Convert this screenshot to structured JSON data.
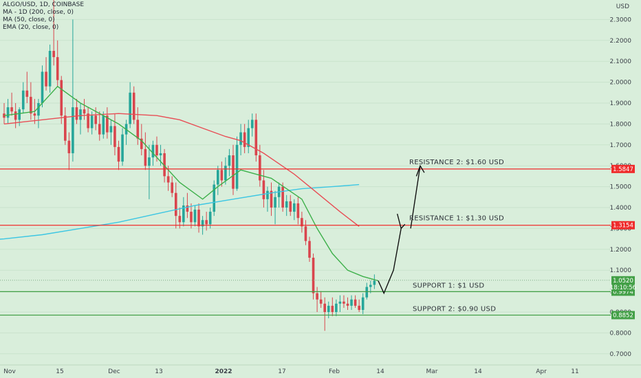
{
  "legend": {
    "title": "ALGO/USD, 1D, COINBASE",
    "lines": [
      "MA - 1D (200, close, 0)",
      "MA (50, close, 0)",
      "EMA (20, close, 0)"
    ]
  },
  "chart_data": {
    "type": "candlestick",
    "currency_label": "USD",
    "y_ticks": [
      0.7,
      0.8,
      0.9,
      1.0,
      1.1,
      1.2,
      1.3,
      1.4,
      1.5,
      1.6,
      1.7,
      1.8,
      1.9,
      2.0,
      2.1,
      2.2,
      2.3
    ],
    "y_tick_labels": [
      "0.7000",
      "0.8000",
      "0.9000",
      "1.0000",
      "1.1000",
      "1.2000",
      "1.3000",
      "1.4000",
      "1.5000",
      "1.6000",
      "1.7000",
      "1.8000",
      "1.9000",
      "2.0000",
      "2.1000",
      "2.2000",
      "2.3000"
    ],
    "x_labels": [
      "Nov",
      "15",
      "Dec",
      "13",
      "2022",
      "17",
      "Feb",
      "14",
      "Mar",
      "14",
      "Apr",
      "11"
    ],
    "start_date": "2021-11-01",
    "candles": [
      [
        "2021-11-01",
        1.85,
        1.9,
        1.8,
        1.83
      ],
      [
        "2021-11-02",
        1.83,
        1.92,
        1.8,
        1.88
      ],
      [
        "2021-11-03",
        1.88,
        1.95,
        1.84,
        1.86
      ],
      [
        "2021-11-04",
        1.86,
        1.9,
        1.78,
        1.82
      ],
      [
        "2021-11-05",
        1.82,
        1.88,
        1.79,
        1.87
      ],
      [
        "2021-11-06",
        1.87,
        2.0,
        1.85,
        1.96
      ],
      [
        "2021-11-07",
        1.96,
        2.05,
        1.9,
        1.93
      ],
      [
        "2021-11-08",
        1.93,
        2.0,
        1.82,
        1.85
      ],
      [
        "2021-11-09",
        1.85,
        1.92,
        1.8,
        1.84
      ],
      [
        "2021-11-10",
        1.84,
        1.92,
        1.78,
        1.9
      ],
      [
        "2021-11-11",
        1.9,
        2.08,
        1.88,
        2.05
      ],
      [
        "2021-11-12",
        2.05,
        2.12,
        1.96,
        1.98
      ],
      [
        "2021-11-13",
        1.98,
        2.18,
        1.95,
        2.15
      ],
      [
        "2021-11-14",
        2.15,
        2.4,
        2.08,
        2.12
      ],
      [
        "2021-11-15",
        2.12,
        2.2,
        1.98,
        2.01
      ],
      [
        "2021-11-16",
        2.01,
        2.03,
        1.8,
        1.84
      ],
      [
        "2021-11-17",
        1.84,
        1.88,
        1.7,
        1.72
      ],
      [
        "2021-11-18",
        1.72,
        1.76,
        1.58,
        1.66
      ],
      [
        "2021-11-19",
        1.66,
        2.3,
        1.62,
        1.88
      ],
      [
        "2021-11-20",
        1.88,
        1.92,
        1.8,
        1.82
      ],
      [
        "2021-11-21",
        1.82,
        1.9,
        1.75,
        1.87
      ],
      [
        "2021-11-22",
        1.87,
        1.92,
        1.82,
        1.85
      ],
      [
        "2021-11-23",
        1.85,
        1.88,
        1.76,
        1.78
      ],
      [
        "2021-11-24",
        1.78,
        1.86,
        1.75,
        1.84
      ],
      [
        "2021-11-25",
        1.84,
        1.88,
        1.77,
        1.8
      ],
      [
        "2021-11-26",
        1.8,
        1.86,
        1.72,
        1.75
      ],
      [
        "2021-11-27",
        1.75,
        1.86,
        1.73,
        1.84
      ],
      [
        "2021-11-28",
        1.84,
        1.88,
        1.73,
        1.76
      ],
      [
        "2021-11-29",
        1.76,
        1.82,
        1.7,
        1.79
      ],
      [
        "2021-11-30",
        1.79,
        1.85,
        1.65,
        1.69
      ],
      [
        "2021-12-01",
        1.69,
        1.72,
        1.58,
        1.62
      ],
      [
        "2021-12-02",
        1.62,
        1.78,
        1.6,
        1.75
      ],
      [
        "2021-12-03",
        1.75,
        1.82,
        1.7,
        1.8
      ],
      [
        "2021-12-04",
        1.8,
        2.0,
        1.78,
        1.95
      ],
      [
        "2021-12-05",
        1.95,
        1.98,
        1.8,
        1.82
      ],
      [
        "2021-12-06",
        1.82,
        1.88,
        1.7,
        1.73
      ],
      [
        "2021-12-07",
        1.73,
        1.8,
        1.65,
        1.68
      ],
      [
        "2021-12-08",
        1.68,
        1.76,
        1.58,
        1.6
      ],
      [
        "2021-12-09",
        1.6,
        1.7,
        1.44,
        1.64
      ],
      [
        "2021-12-10",
        1.64,
        1.72,
        1.6,
        1.7
      ],
      [
        "2021-12-11",
        1.7,
        1.74,
        1.62,
        1.65
      ],
      [
        "2021-12-12",
        1.65,
        1.7,
        1.6,
        1.66
      ],
      [
        "2021-12-13",
        1.66,
        1.68,
        1.52,
        1.55
      ],
      [
        "2021-12-14",
        1.55,
        1.6,
        1.48,
        1.52
      ],
      [
        "2021-12-15",
        1.52,
        1.55,
        1.45,
        1.47
      ],
      [
        "2021-12-16",
        1.47,
        1.52,
        1.3,
        1.36
      ],
      [
        "2021-12-17",
        1.36,
        1.4,
        1.3,
        1.33
      ],
      [
        "2021-12-18",
        1.33,
        1.45,
        1.31,
        1.41
      ],
      [
        "2021-12-19",
        1.41,
        1.47,
        1.35,
        1.38
      ],
      [
        "2021-12-20",
        1.38,
        1.42,
        1.3,
        1.33
      ],
      [
        "2021-12-21",
        1.33,
        1.41,
        1.31,
        1.39
      ],
      [
        "2021-12-22",
        1.39,
        1.42,
        1.28,
        1.31
      ],
      [
        "2021-12-23",
        1.31,
        1.36,
        1.27,
        1.34
      ],
      [
        "2021-12-24",
        1.34,
        1.38,
        1.29,
        1.32
      ],
      [
        "2021-12-25",
        1.32,
        1.4,
        1.3,
        1.38
      ],
      [
        "2021-12-26",
        1.38,
        1.53,
        1.36,
        1.51
      ],
      [
        "2021-12-27",
        1.51,
        1.6,
        1.46,
        1.58
      ],
      [
        "2021-12-28",
        1.58,
        1.62,
        1.5,
        1.53
      ],
      [
        "2021-12-29",
        1.53,
        1.64,
        1.51,
        1.6
      ],
      [
        "2021-12-30",
        1.6,
        1.68,
        1.55,
        1.65
      ],
      [
        "2021-12-31",
        1.65,
        1.7,
        1.46,
        1.49
      ],
      [
        "2022-01-01",
        1.49,
        1.74,
        1.48,
        1.7
      ],
      [
        "2022-01-02",
        1.7,
        1.8,
        1.65,
        1.76
      ],
      [
        "2022-01-03",
        1.76,
        1.8,
        1.66,
        1.69
      ],
      [
        "2022-01-04",
        1.69,
        1.82,
        1.66,
        1.78
      ],
      [
        "2022-01-05",
        1.78,
        1.85,
        1.74,
        1.82
      ],
      [
        "2022-01-06",
        1.82,
        1.85,
        1.62,
        1.65
      ],
      [
        "2022-01-07",
        1.65,
        1.7,
        1.5,
        1.53
      ],
      [
        "2022-01-08",
        1.53,
        1.58,
        1.4,
        1.44
      ],
      [
        "2022-01-09",
        1.44,
        1.5,
        1.38,
        1.48
      ],
      [
        "2022-01-10",
        1.48,
        1.52,
        1.36,
        1.4
      ],
      [
        "2022-01-11",
        1.4,
        1.48,
        1.32,
        1.45
      ],
      [
        "2022-01-12",
        1.45,
        1.52,
        1.4,
        1.5
      ],
      [
        "2022-01-13",
        1.5,
        1.52,
        1.38,
        1.4
      ],
      [
        "2022-01-14",
        1.4,
        1.46,
        1.36,
        1.43
      ],
      [
        "2022-01-15",
        1.43,
        1.46,
        1.36,
        1.38
      ],
      [
        "2022-01-16",
        1.38,
        1.44,
        1.34,
        1.42
      ],
      [
        "2022-01-17",
        1.42,
        1.45,
        1.32,
        1.35
      ],
      [
        "2022-01-18",
        1.35,
        1.38,
        1.28,
        1.31
      ],
      [
        "2022-01-19",
        1.31,
        1.34,
        1.22,
        1.24
      ],
      [
        "2022-01-20",
        1.24,
        1.26,
        1.14,
        1.16
      ],
      [
        "2022-01-21",
        1.16,
        1.18,
        0.96,
        0.99
      ],
      [
        "2022-01-22",
        0.99,
        1.02,
        0.9,
        0.96
      ],
      [
        "2022-01-23",
        0.96,
        1.0,
        0.92,
        0.94
      ],
      [
        "2022-01-24",
        0.94,
        0.97,
        0.81,
        0.9
      ],
      [
        "2022-01-25",
        0.9,
        0.95,
        0.87,
        0.93
      ],
      [
        "2022-01-26",
        0.93,
        0.97,
        0.88,
        0.9
      ],
      [
        "2022-01-27",
        0.9,
        0.96,
        0.88,
        0.94
      ],
      [
        "2022-01-28",
        0.94,
        0.98,
        0.9,
        0.95
      ],
      [
        "2022-01-29",
        0.95,
        0.98,
        0.92,
        0.94
      ],
      [
        "2022-01-30",
        0.94,
        0.97,
        0.91,
        0.93
      ],
      [
        "2022-01-31",
        0.93,
        0.98,
        0.91,
        0.96
      ],
      [
        "2022-02-01",
        0.96,
        0.98,
        0.92,
        0.93
      ],
      [
        "2022-02-02",
        0.93,
        0.96,
        0.9,
        0.91
      ],
      [
        "2022-02-03",
        0.91,
        0.99,
        0.89,
        0.97
      ],
      [
        "2022-02-04",
        0.97,
        1.04,
        0.96,
        1.02
      ],
      [
        "2022-02-05",
        1.02,
        1.05,
        0.99,
        1.03
      ],
      [
        "2022-02-06",
        1.03,
        1.08,
        1.01,
        1.05
      ]
    ],
    "ema20": [
      [
        0,
        1.84
      ],
      [
        8,
        1.86
      ],
      [
        14,
        1.98
      ],
      [
        20,
        1.9
      ],
      [
        30,
        1.8
      ],
      [
        36,
        1.72
      ],
      [
        40,
        1.64
      ],
      [
        46,
        1.52
      ],
      [
        52,
        1.44
      ],
      [
        56,
        1.5
      ],
      [
        62,
        1.58
      ],
      [
        66,
        1.56
      ],
      [
        70,
        1.54
      ],
      [
        78,
        1.44
      ],
      [
        82,
        1.3
      ],
      [
        86,
        1.18
      ],
      [
        90,
        1.1
      ],
      [
        94,
        1.07
      ],
      [
        98,
        1.05
      ]
    ],
    "ma50": [
      [
        0,
        1.8
      ],
      [
        10,
        1.82
      ],
      [
        20,
        1.84
      ],
      [
        30,
        1.85
      ],
      [
        40,
        1.84
      ],
      [
        46,
        1.82
      ],
      [
        52,
        1.78
      ],
      [
        58,
        1.74
      ],
      [
        62,
        1.72
      ],
      [
        68,
        1.66
      ],
      [
        72,
        1.61
      ],
      [
        76,
        1.56
      ],
      [
        80,
        1.5
      ],
      [
        84,
        1.44
      ],
      [
        88,
        1.38
      ],
      [
        93,
        1.31
      ]
    ],
    "ma200": [
      [
        -8,
        1.24
      ],
      [
        0,
        1.25
      ],
      [
        10,
        1.27
      ],
      [
        20,
        1.3
      ],
      [
        30,
        1.33
      ],
      [
        40,
        1.37
      ],
      [
        50,
        1.41
      ],
      [
        60,
        1.44
      ],
      [
        70,
        1.47
      ],
      [
        78,
        1.49
      ],
      [
        86,
        1.5
      ],
      [
        93,
        1.51
      ]
    ],
    "horizontal_lines": [
      {
        "price": 1.5847,
        "color": "#ef2b2b",
        "tag": "1.5847"
      },
      {
        "price": 1.3154,
        "color": "#ef2b2b",
        "tag": "1.3154"
      },
      {
        "price": 0.9974,
        "color": "#43a047",
        "tag": "0.9974"
      },
      {
        "price": 0.8852,
        "color": "#43a047",
        "tag": "0.8852"
      }
    ],
    "annotations": [
      "RESISTANCE 2: $1.60 USD",
      "RESISTANCE 1: $1.30 USD",
      "SUPPORT 1: $1 USD",
      "SUPPORT 2: $0.90 USD"
    ],
    "last_price": {
      "price": 1.052,
      "label": "1.0520",
      "countdown": "18:10:56"
    },
    "projection": [
      [
        1.05,
        98
      ],
      [
        0.99,
        99.5
      ],
      [
        1.1,
        102
      ],
      [
        1.3,
        104
      ],
      [
        1.37,
        103
      ],
      [
        1.32,
        105
      ],
      [
        1.3,
        106.5
      ],
      [
        1.34,
        107
      ],
      [
        1.6,
        109
      ],
      [
        1.55,
        108
      ]
    ],
    "colors": {
      "up": "#26a69a",
      "down": "#d9454d",
      "ema": "#3db04a",
      "ma50": "#e84d55",
      "ma200": "#3bc6e3",
      "bg": "#d9eedb"
    }
  }
}
